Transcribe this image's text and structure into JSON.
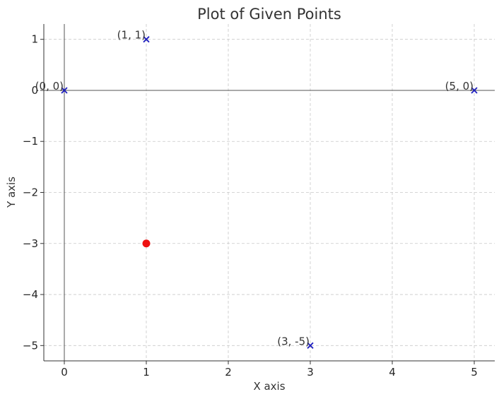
{
  "chart_data": {
    "type": "scatter",
    "title": "Plot of Given Points",
    "xlabel": "X axis",
    "ylabel": "Y axis",
    "xlim": [
      -0.25,
      5.25
    ],
    "ylim": [
      -5.3,
      1.3
    ],
    "xticks": [
      0,
      1,
      2,
      3,
      4,
      5
    ],
    "yticks": [
      1,
      0,
      -1,
      -2,
      -3,
      -4,
      -5
    ],
    "ytick_labels": [
      "1",
      "0",
      "−1",
      "−2",
      "−3",
      "−4",
      "−5"
    ],
    "grid": true,
    "series": [
      {
        "marker": "x",
        "color": "#1f1fbf",
        "points": [
          {
            "x": 0,
            "y": 0,
            "label": "(0, 0)"
          },
          {
            "x": 1,
            "y": 1,
            "label": "(1, 1)"
          },
          {
            "x": 5,
            "y": 0,
            "label": "(5, 0)"
          },
          {
            "x": 3,
            "y": -5,
            "label": "(3, -5)"
          }
        ]
      },
      {
        "marker": "circle",
        "color": "#ee1111",
        "points": [
          {
            "x": 1,
            "y": -3
          }
        ]
      }
    ]
  }
}
